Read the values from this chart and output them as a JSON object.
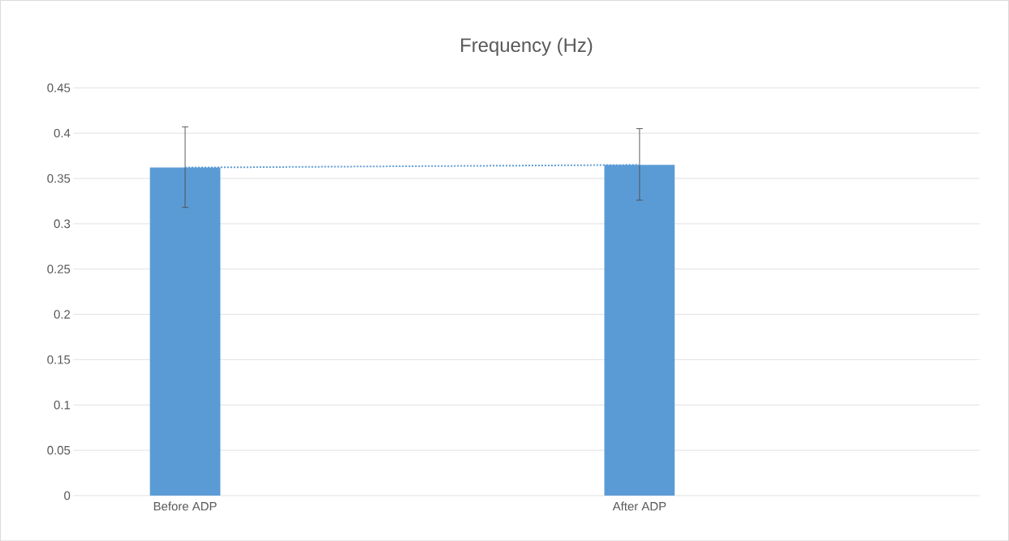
{
  "chart_data": {
    "type": "bar",
    "title": "Frequency (Hz)",
    "categories": [
      "Before ADP",
      "After ADP"
    ],
    "series": [
      {
        "color": "#5b9bd5",
        "values": [
          0.362,
          0.365
        ],
        "errors": [
          [
            0.318,
            0.407
          ],
          [
            0.326,
            0.405
          ]
        ]
      },
      {
        "type": "line",
        "color": "#5b9bd5",
        "line_style": "dotted",
        "values": [
          0.362,
          0.365
        ]
      }
    ],
    "ylim": [
      0,
      0.45
    ],
    "yticks": [
      0,
      0.05,
      0.1,
      0.15,
      0.2,
      0.25,
      0.3,
      0.35,
      0.4,
      0.45
    ],
    "grid": "y"
  }
}
